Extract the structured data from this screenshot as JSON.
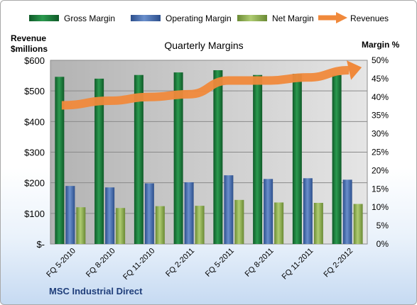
{
  "chart_data": {
    "type": "bar",
    "title": "Quarterly Margins",
    "left_axis_label": [
      "Revenue",
      "$millions"
    ],
    "right_axis_label": "Margin %",
    "footer": "MSC Industrial Direct",
    "categories": [
      "FQ 5-2010",
      "FQ 8-2010",
      "FQ 11-2010",
      "FQ 2-2011",
      "FQ 5-2011",
      "FQ 8-2011",
      "FQ 11-2011",
      "FQ 2-2012"
    ],
    "left_axis": {
      "ylim": [
        0,
        600
      ],
      "ticks": [
        "$-",
        "$100",
        "$200",
        "$300",
        "$400",
        "$500",
        "$600"
      ]
    },
    "right_axis": {
      "ylim": [
        0,
        50
      ],
      "ticks": [
        "0%",
        "5%",
        "10%",
        "15%",
        "20%",
        "25%",
        "30%",
        "35%",
        "40%",
        "45%",
        "50%"
      ]
    },
    "series": [
      {
        "name": "Gross Margin",
        "axis": "right",
        "kind": "bar",
        "color": "#1e7a3c",
        "values": [
          45.5,
          45.0,
          46.0,
          46.7,
          47.3,
          46.0,
          46.3,
          46.0
        ]
      },
      {
        "name": "Operating Margin",
        "axis": "right",
        "kind": "bar",
        "color": "#4a70b0",
        "values": [
          15.8,
          15.4,
          16.5,
          16.8,
          18.7,
          17.7,
          17.9,
          17.5
        ]
      },
      {
        "name": "Net Margin",
        "axis": "right",
        "kind": "bar",
        "color": "#8db050",
        "values": [
          10.0,
          9.8,
          10.3,
          10.4,
          12.0,
          11.3,
          11.2,
          10.9
        ]
      },
      {
        "name": "Revenues",
        "axis": "left",
        "kind": "line",
        "color": "#f0893b",
        "values": [
          453,
          468,
          480,
          489,
          534,
          534,
          544,
          563
        ]
      }
    ],
    "grid": true,
    "legend_position": "top"
  }
}
